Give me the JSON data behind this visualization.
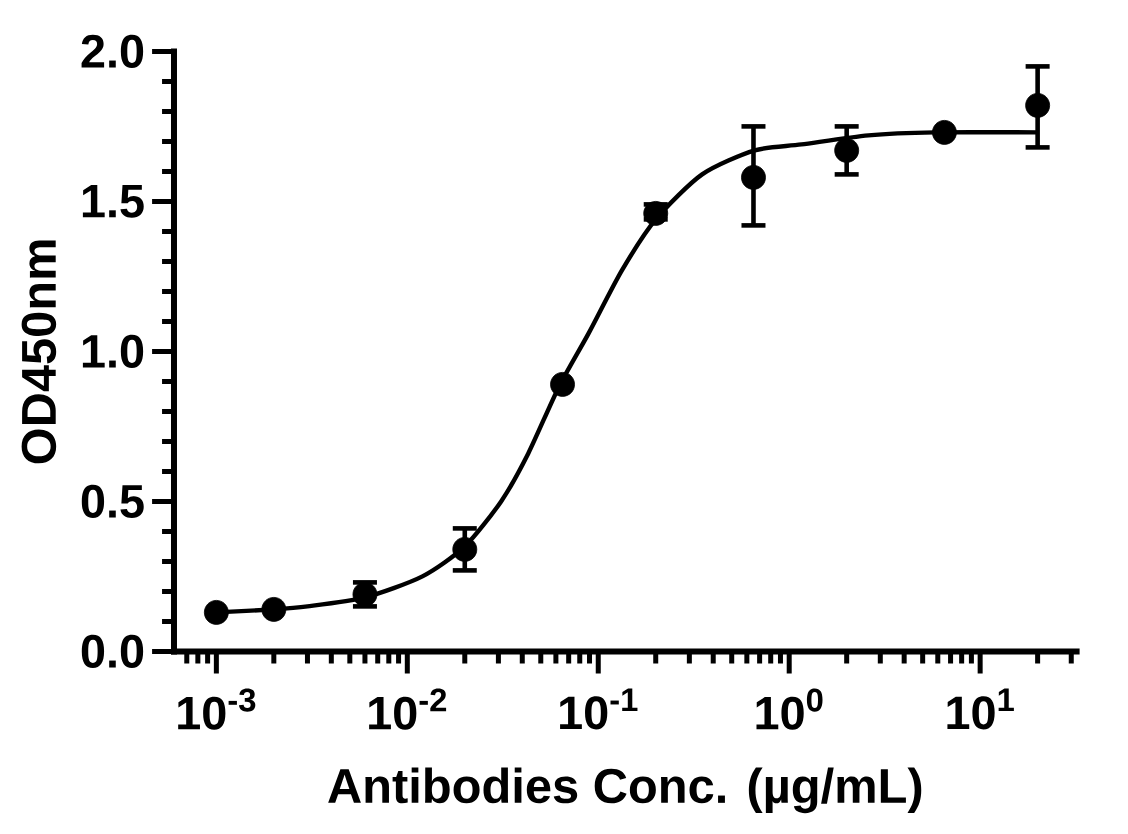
{
  "chart_data": {
    "type": "scatter",
    "xlabel": "Antibodies Conc. (µg/mL)",
    "ylabel": "OD450nm",
    "log": "x",
    "marker": "circle",
    "xlim": [
      0.0006,
      32
    ],
    "xticks": [
      {
        "value": 0.001,
        "label": "10$^{-3}$"
      },
      {
        "value": 0.01,
        "label": "10$^{-2}$"
      },
      {
        "value": 0.1,
        "label": "10$^{-1}$"
      },
      {
        "value": 1,
        "label": "10$^{0}$"
      },
      {
        "value": 10,
        "label": "10$^{1}$"
      }
    ],
    "ylim": [
      0,
      2
    ],
    "yticks": [
      {
        "value": 0,
        "label": "0.0"
      },
      {
        "value": 0.5,
        "label": "0.5"
      },
      {
        "value": 1,
        "label": "1.0"
      },
      {
        "value": 1.5,
        "label": "1.5"
      },
      {
        "value": 2,
        "label": "2.0"
      }
    ],
    "series": [
      {
        "type": "line",
        "color": "#000000",
        "marker": "none",
        "x": [
          0.001,
          0.002,
          0.003,
          0.006,
          0.012,
          0.02,
          0.031,
          0.043,
          0.062,
          0.089,
          0.133,
          0.2,
          0.35,
          0.66,
          1.16,
          2.6,
          5.8,
          20
        ],
        "values": [
          0.13,
          0.14,
          0.15,
          0.18,
          0.25,
          0.35,
          0.5,
          0.66,
          0.88,
          1.06,
          1.27,
          1.44,
          1.59,
          1.67,
          1.69,
          1.72,
          1.73,
          1.73
        ]
      },
      {
        "color": "#000000",
        "x": [
          0.001,
          0.002,
          0.006,
          0.02,
          0.065,
          0.2,
          0.65,
          2,
          6.5,
          20
        ],
        "values": [
          0.13,
          0.14,
          0.19,
          0.34,
          0.89,
          1.46,
          1.58,
          1.67,
          1.73,
          1.82
        ],
        "errors": [
          null,
          null,
          [
            0.15,
            0.23
          ],
          [
            0.27,
            0.41
          ],
          null,
          [
            1.44,
            1.49
          ],
          [
            1.42,
            1.75
          ],
          [
            1.59,
            1.75
          ],
          null,
          [
            1.68,
            1.95
          ]
        ]
      }
    ]
  }
}
